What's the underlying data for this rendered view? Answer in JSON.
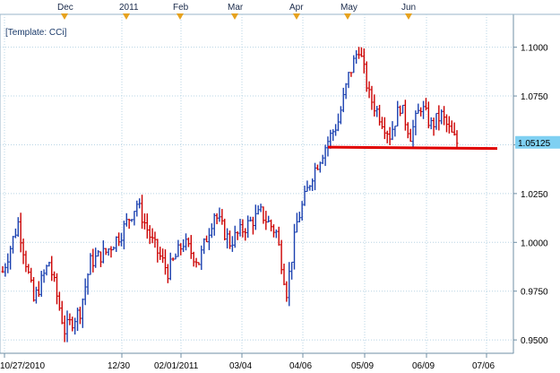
{
  "template_label": "[Template: CCi]",
  "month_markers": [
    "Dec",
    "2011",
    "Feb",
    "Mar",
    "Apr",
    "May",
    "Jun"
  ],
  "colors": {
    "up": "#1a40b0",
    "down": "#cc0000",
    "support_line": "#e00000",
    "grid": "#b8d4e4",
    "current_price_bg": "#7fd0f2",
    "marker": "#e6a21e"
  },
  "chart_data": {
    "type": "candlestick",
    "title": "",
    "xlabel": "",
    "ylabel": "",
    "ylim": [
      0.945,
      1.115
    ],
    "yticks": [
      0.95,
      0.975,
      1.0,
      1.025,
      1.05,
      1.075,
      1.1
    ],
    "ytick_labels": [
      "0.9500",
      "0.9750",
      "1.0000",
      "1.0250",
      "1.0500",
      "1.0750",
      "1.1000"
    ],
    "x_labels": [
      "10/27/2010",
      "12/30",
      "02/01/2011",
      "03/04",
      "04/06",
      "05/09",
      "06/09",
      "07/06"
    ],
    "current_price": "1.05125",
    "support_level": 1.0488,
    "grid": true,
    "segments": [
      {
        "from": 0,
        "to": 0.985
      },
      {
        "from": 6,
        "to": 1.01
      },
      {
        "from": 12,
        "to": 0.97
      },
      {
        "from": 18,
        "to": 0.99
      },
      {
        "from": 24,
        "to": 0.955
      },
      {
        "from": 30,
        "to": 0.965
      },
      {
        "from": 34,
        "to": 0.99
      },
      {
        "from": 40,
        "to": 0.995
      },
      {
        "from": 46,
        "to": 1.005
      },
      {
        "from": 52,
        "to": 1.02
      },
      {
        "from": 58,
        "to": 1.0
      },
      {
        "from": 64,
        "to": 0.985
      },
      {
        "from": 70,
        "to": 1.0
      },
      {
        "from": 76,
        "to": 0.99
      },
      {
        "from": 82,
        "to": 1.015
      },
      {
        "from": 88,
        "to": 1.0
      },
      {
        "from": 94,
        "to": 1.008
      },
      {
        "from": 100,
        "to": 1.015
      },
      {
        "from": 106,
        "to": 1.005
      },
      {
        "from": 110,
        "to": 0.975
      },
      {
        "from": 114,
        "to": 1.01
      },
      {
        "from": 120,
        "to": 1.035
      },
      {
        "from": 126,
        "to": 1.052
      },
      {
        "from": 130,
        "to": 1.062
      },
      {
        "from": 134,
        "to": 1.085
      },
      {
        "from": 138,
        "to": 1.1
      },
      {
        "from": 142,
        "to": 1.075
      },
      {
        "from": 146,
        "to": 1.065
      },
      {
        "from": 150,
        "to": 1.055
      },
      {
        "from": 154,
        "to": 1.07
      },
      {
        "from": 158,
        "to": 1.055
      },
      {
        "from": 162,
        "to": 1.07
      },
      {
        "from": 166,
        "to": 1.06
      },
      {
        "from": 170,
        "to": 1.065
      },
      {
        "from": 174,
        "to": 1.055
      },
      {
        "from": 176,
        "to": 1.051
      }
    ]
  }
}
